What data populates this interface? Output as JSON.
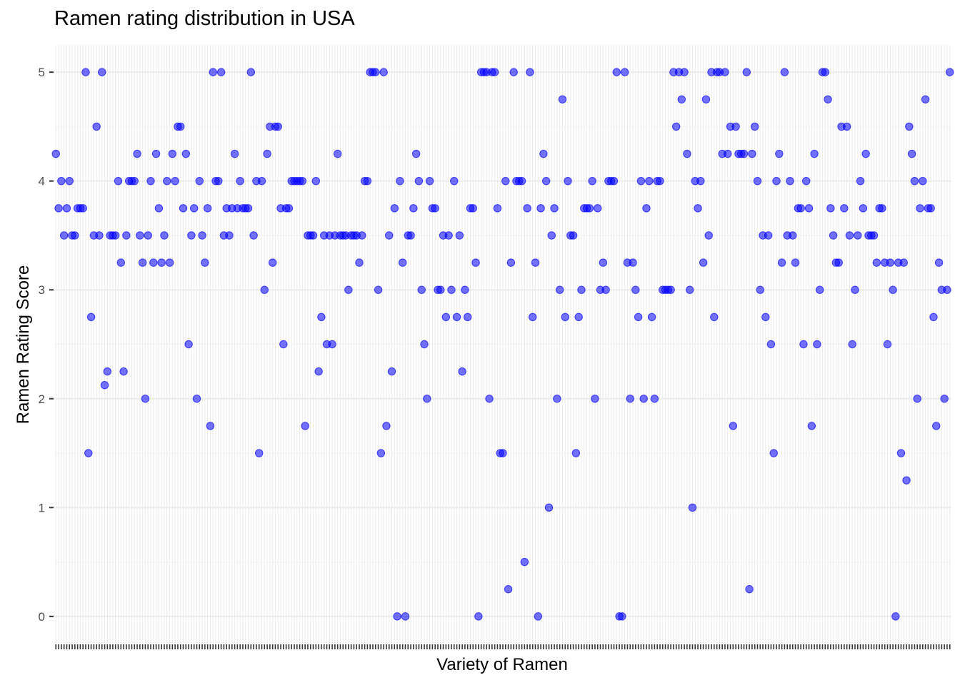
{
  "chart_data": {
    "type": "scatter",
    "title": "Ramen rating distribution in USA",
    "xlabel": "Variety of Ramen",
    "ylabel": "Ramen Rating Score",
    "ylim": [
      -0.25,
      5.25
    ],
    "yticks": [
      0,
      1,
      2,
      3,
      4,
      5
    ],
    "x_tick_labels_visible": false,
    "point_color": "#0000ff",
    "point_opacity": 0.55,
    "grid": true,
    "panel_background": "#ffffff",
    "grid_color": "#ebebeb",
    "values": [
      4.25,
      3.75,
      4,
      3.5,
      3.75,
      4,
      3.5,
      3.5,
      3.75,
      3.75,
      3.75,
      5,
      1.5,
      2.75,
      3.5,
      4.5,
      3.5,
      5,
      2.125,
      2.25,
      3.5,
      3.5,
      3.5,
      4,
      3.25,
      2.25,
      3.5,
      4,
      4,
      4,
      4.25,
      3.5,
      3.25,
      2,
      3.5,
      4,
      3.25,
      4.25,
      3.75,
      3.25,
      3.5,
      4,
      3.25,
      4.25,
      4,
      4.5,
      4.5,
      3.75,
      4.25,
      2.5,
      3.5,
      3.75,
      2,
      4,
      3.5,
      3.25,
      3.75,
      1.75,
      5,
      4,
      4,
      5,
      3.5,
      3.75,
      3.5,
      3.75,
      4.25,
      3.75,
      4,
      3.75,
      3.75,
      3.75,
      5,
      3.5,
      4,
      1.5,
      4,
      3,
      4.25,
      4.5,
      3.25,
      4.5,
      4.5,
      3.75,
      2.5,
      3.75,
      3.75,
      4,
      4,
      4,
      4,
      4,
      1.75,
      3.5,
      3.5,
      3.5,
      4,
      2.25,
      2.75,
      3.5,
      2.5,
      3.5,
      2.5,
      3.5,
      4.25,
      3.5,
      3.5,
      3.5,
      3,
      3.5,
      3.5,
      3.5,
      3.25,
      3.5,
      4,
      4,
      5,
      5,
      5,
      3,
      1.5,
      5,
      1.75,
      3.5,
      2.25,
      3.75,
      0,
      4,
      3.25,
      0,
      3.5,
      3.5,
      3.75,
      4.25,
      4,
      3,
      2.5,
      2,
      4,
      3.75,
      3.75,
      3,
      3,
      3.5,
      2.75,
      3.5,
      3,
      4,
      2.75,
      3.5,
      2.25,
      3,
      2.75,
      3.75,
      3.75,
      3.25,
      0,
      5,
      5,
      5,
      2,
      5,
      5,
      3.75,
      1.5,
      1.5,
      4,
      0.25,
      3.25,
      5,
      4,
      4,
      4,
      0.5,
      3.75,
      5,
      2.75,
      3.25,
      0,
      3.75,
      4.25,
      4,
      1,
      3.5,
      3.75,
      2,
      3,
      4.75,
      2.75,
      4,
      3.5,
      3.5,
      1.5,
      2.75,
      3,
      3.75,
      3.75,
      3.75,
      4,
      2,
      3.75,
      3,
      3.25,
      3,
      4,
      4,
      4,
      5,
      0,
      0,
      5,
      3.25,
      2,
      3.25,
      3,
      2.75,
      4,
      2,
      3.75,
      4,
      2.75,
      2,
      4,
      4,
      3,
      3,
      3,
      3,
      5,
      4.5,
      5,
      4.75,
      5,
      4.25,
      3,
      1,
      4,
      3.75,
      4,
      3.25,
      4.75,
      3.5,
      5,
      2.75,
      5,
      5,
      4.25,
      5,
      4.25,
      4.5,
      1.75,
      4.5,
      4.25,
      4.25,
      4.25,
      5,
      0.25,
      4.25,
      4.5,
      4,
      3,
      3.5,
      2.75,
      3.5,
      2.5,
      1.5,
      4,
      4.25,
      3.25,
      5,
      3.5,
      4,
      3.5,
      3.25,
      3.75,
      3.75,
      2.5,
      4,
      3.75,
      1.75,
      4.25,
      2.5,
      3,
      5,
      5,
      4.75,
      3.75,
      3.5,
      3.25,
      3.25,
      4.5,
      3.75,
      4.5,
      3.5,
      2.5,
      3,
      3.5,
      4,
      3.75,
      4.25,
      3.5,
      3.5,
      3.5,
      3.25,
      3.75,
      3.75,
      3.25,
      2.5,
      3.25,
      3,
      0,
      3.25,
      1.5,
      3.25,
      1.25,
      4.5,
      4.25,
      4,
      2,
      3.75,
      4,
      4.75,
      3.75,
      3.75,
      2.75,
      1.75,
      3.25,
      3,
      2,
      3,
      5
    ]
  }
}
